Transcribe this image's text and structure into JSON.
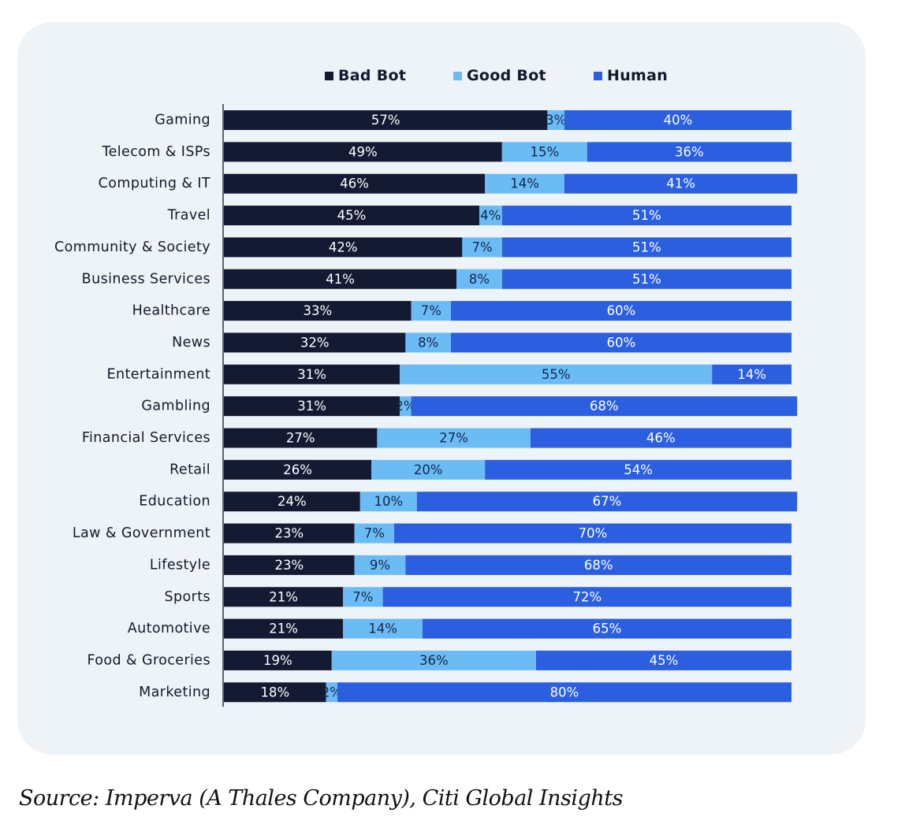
{
  "chart_data": {
    "type": "bar",
    "orientation": "horizontal",
    "stacked": true,
    "title": "",
    "xlabel": "",
    "ylabel": "",
    "xlim": [
      0,
      100
    ],
    "grid": false,
    "legend_position": "top-center",
    "categories": [
      "Gaming",
      "Telecom & ISPs",
      "Computing & IT",
      "Travel",
      "Community & Society",
      "Business Services",
      "Healthcare",
      "News",
      "Entertainment",
      "Gambling",
      "Financial Services",
      "Retail",
      "Education",
      "Law & Government",
      "Lifestyle",
      "Sports",
      "Automotive",
      "Food & Groceries",
      "Marketing"
    ],
    "series": [
      {
        "name": "Bad Bot",
        "color": "#151a33",
        "label_color": "#ffffff",
        "values": [
          57,
          49,
          46,
          45,
          42,
          41,
          33,
          32,
          31,
          31,
          27,
          26,
          24,
          23,
          23,
          21,
          21,
          19,
          18
        ]
      },
      {
        "name": "Good Bot",
        "color": "#6bbcf5",
        "label_color": "#15264a",
        "values": [
          3,
          15,
          14,
          4,
          7,
          8,
          7,
          8,
          55,
          2,
          27,
          20,
          10,
          7,
          9,
          7,
          14,
          36,
          2
        ]
      },
      {
        "name": "Human",
        "color": "#2b5fe0",
        "label_color": "#ffffff",
        "values": [
          40,
          36,
          41,
          51,
          51,
          51,
          60,
          60,
          14,
          68,
          46,
          54,
          67,
          70,
          68,
          72,
          65,
          45,
          80
        ]
      }
    ],
    "value_suffix": "%"
  },
  "source": "Source: Imperva (A Thales Company), Citi Global Insights"
}
